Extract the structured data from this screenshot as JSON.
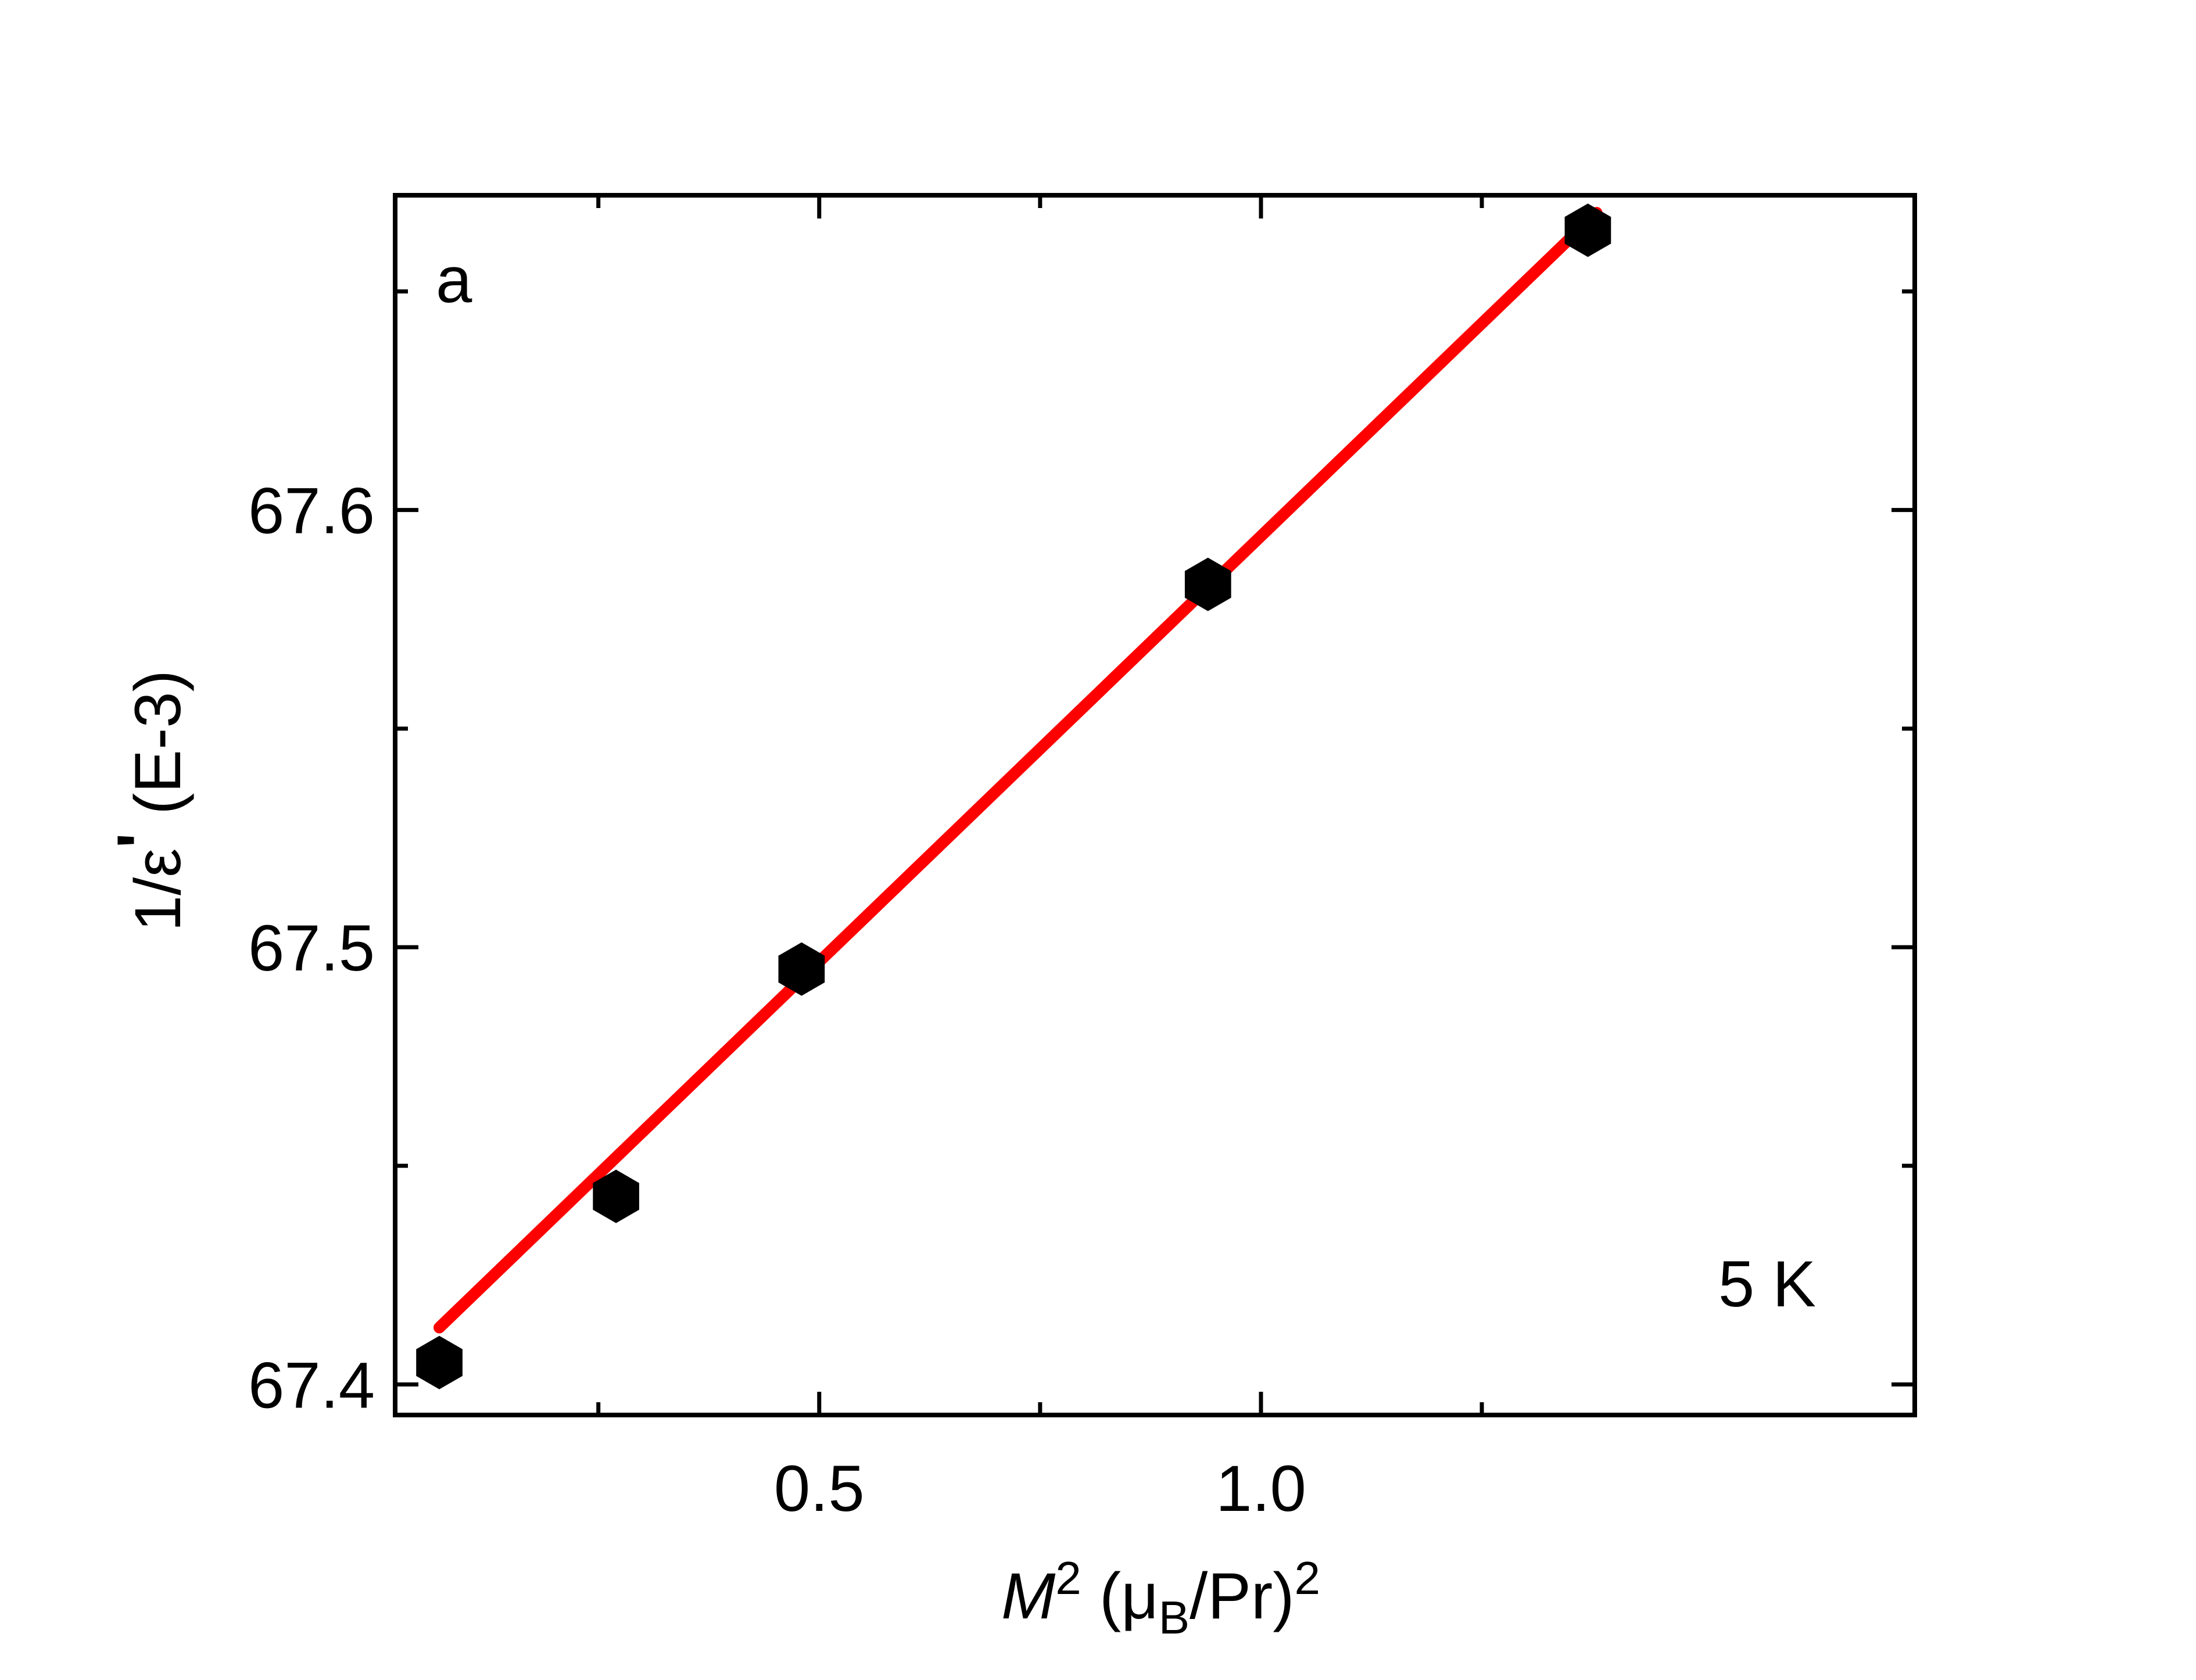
{
  "chart_data": {
    "type": "scatter",
    "panel_label": "a",
    "annotation": "5 K",
    "xlabel": {
      "italic": "M",
      "sup1": "2",
      "open": " (μ",
      "sub": "B",
      "mid": "/Pr)",
      "sup2": "2"
    },
    "ylabel": {
      "main": "1/ε",
      "prime": "'",
      "unit": " (E-3)"
    },
    "xlim": [
      0.02,
      1.74
    ],
    "ylim": [
      67.393,
      67.672
    ],
    "x_ticks_major": [
      0.5,
      1.0
    ],
    "x_tick_labels": [
      "0.5",
      "1.0"
    ],
    "x_ticks_minor": [
      0.25,
      0.75,
      1.25
    ],
    "y_ticks_major": [
      67.4,
      67.5,
      67.6
    ],
    "y_tick_labels": [
      "67.4",
      "67.5",
      "67.6"
    ],
    "y_ticks_minor": [
      67.45,
      67.55,
      67.65
    ],
    "grid": false,
    "legend": "none",
    "series": [
      {
        "marker": "hexagon",
        "color": "#000000",
        "x": [
          0.07,
          0.27,
          0.48,
          0.94,
          1.37
        ],
        "y": [
          67.405,
          67.443,
          67.495,
          67.583,
          67.664
        ]
      }
    ],
    "fit_line": {
      "color": "#ff0000",
      "x": [
        0.07,
        1.38
      ],
      "y": [
        67.413,
        67.668
      ]
    }
  }
}
